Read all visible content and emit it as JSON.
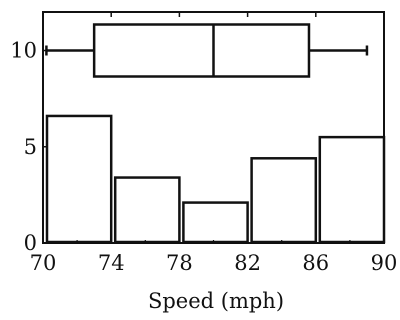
{
  "chart_data": {
    "type": "bar",
    "title": "",
    "xlabel": "Speed (mph)",
    "ylabel": "",
    "xlim": [
      70,
      90
    ],
    "ylim": [
      0,
      12
    ],
    "xticks": [
      "70",
      "74",
      "78",
      "82",
      "86",
      "90"
    ],
    "yticks": [
      "0",
      "5",
      "10"
    ],
    "grid": false,
    "histogram": {
      "bins": [
        [
          70,
          74
        ],
        [
          74,
          78
        ],
        [
          78,
          82
        ],
        [
          82,
          86
        ],
        [
          86,
          90
        ]
      ],
      "counts": [
        6.6,
        3.4,
        2.1,
        4.4,
        5.5
      ]
    },
    "boxplot": {
      "level": 10,
      "min": 70.2,
      "q1": 73.0,
      "median": 80.0,
      "q3": 85.6,
      "max": 89.0
    }
  }
}
